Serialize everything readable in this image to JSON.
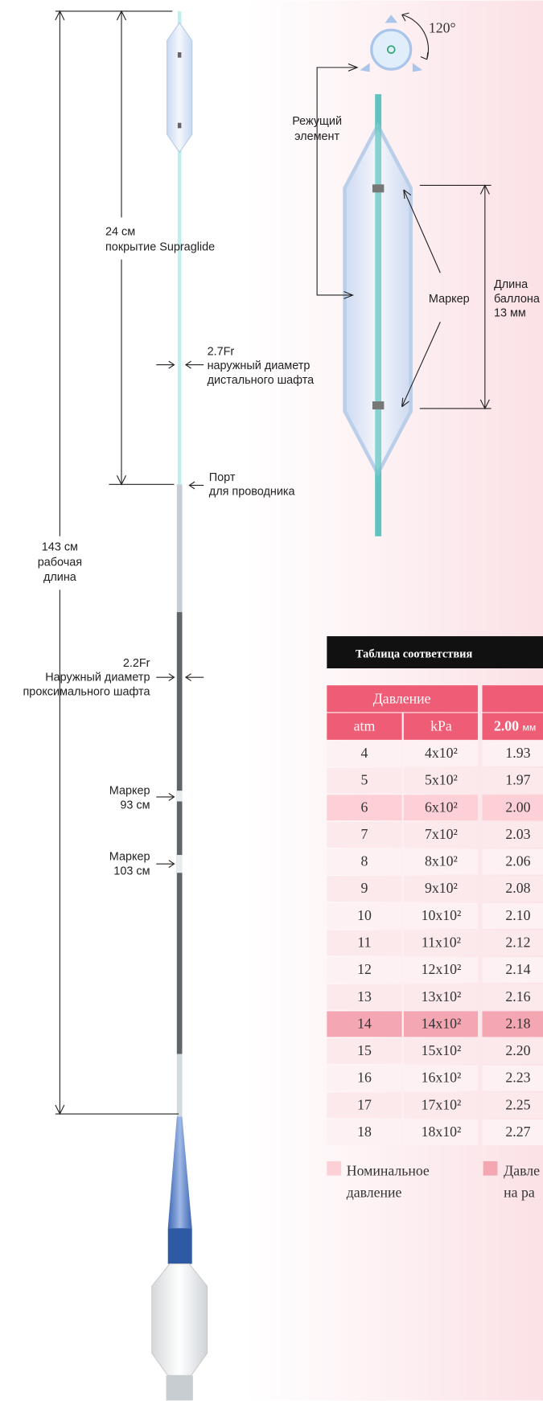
{
  "catheter": {
    "total_length": [
      "143 см",
      "рабочая",
      "длина"
    ],
    "coating": [
      "24 см",
      "покрытие Supraglide"
    ],
    "distal_shaft": [
      "2.7Fr",
      "наружный диаметр",
      "дистального шафта"
    ],
    "port": [
      "Порт",
      "для проводника"
    ],
    "proximal_shaft": [
      "2.2Fr",
      "Наружный диаметр",
      "проксимального шафта"
    ],
    "marker_93": [
      "Маркер",
      "93 см"
    ],
    "marker_103": [
      "Маркер",
      "103 см"
    ]
  },
  "balloon": {
    "angle": "120°",
    "cutting_element": [
      "Режущий",
      "элемент"
    ],
    "marker": "Маркер",
    "length": [
      "Длина",
      "баллона",
      "13 мм"
    ]
  },
  "table": {
    "title": "Таблица соответствия",
    "group_header": "Давление",
    "headers": [
      "atm",
      "kPa",
      "2.00"
    ],
    "header_unit": "мм",
    "rows": [
      [
        "4",
        "4x10²",
        "1.93"
      ],
      [
        "5",
        "5x10²",
        "1.97"
      ],
      [
        "6",
        "6x10²",
        "2.00"
      ],
      [
        "7",
        "7x10²",
        "2.03"
      ],
      [
        "8",
        "8x10²",
        "2.06"
      ],
      [
        "9",
        "9x10²",
        "2.08"
      ],
      [
        "10",
        "10x10²",
        "2.10"
      ],
      [
        "11",
        "11x10²",
        "2.12"
      ],
      [
        "12",
        "12x10²",
        "2.14"
      ],
      [
        "13",
        "13x10²",
        "2.16"
      ],
      [
        "14",
        "14x10²",
        "2.18"
      ],
      [
        "15",
        "15x10²",
        "2.20"
      ],
      [
        "16",
        "16x10²",
        "2.23"
      ],
      [
        "17",
        "17x10²",
        "2.25"
      ],
      [
        "18",
        "18x10²",
        "2.27"
      ]
    ],
    "nominal_row": 2,
    "rated_row": 10
  },
  "legend": {
    "nominal": [
      "Номинальное",
      "давление"
    ],
    "rated": [
      "Давле",
      "на ра"
    ]
  }
}
